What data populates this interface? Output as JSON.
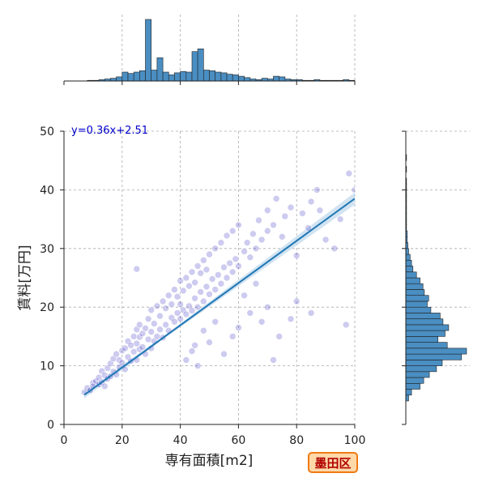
{
  "badge": "墨田区",
  "colors": {
    "scatter": "#1a14b8",
    "regression": "#1f77b4",
    "band": "#c6dcef",
    "hist_fill": "#4a8ec2",
    "hist_edge": "#222222",
    "grid": "#aaaaaa",
    "equation": "#0000cc"
  },
  "chart_data": [
    {
      "type": "scatter",
      "title": "",
      "xlabel": "専有面積[m2]",
      "ylabel": "賃料[万円]",
      "xlim": [
        0,
        100
      ],
      "ylim": [
        0,
        50
      ],
      "xticks": [
        0,
        20,
        40,
        60,
        80,
        100
      ],
      "yticks": [
        0,
        10,
        20,
        30,
        40,
        50
      ],
      "grid": true,
      "annotation": "y=0.36x+2.51",
      "regression": {
        "slope": 0.36,
        "intercept": 2.51,
        "x_range": [
          7,
          100
        ]
      },
      "points": [
        [
          7,
          5.5
        ],
        [
          8,
          6.2
        ],
        [
          9,
          5.8
        ],
        [
          10,
          7.1
        ],
        [
          10,
          6.5
        ],
        [
          11,
          7.4
        ],
        [
          12,
          6.8
        ],
        [
          12,
          8.0
        ],
        [
          13,
          7.2
        ],
        [
          13,
          9.1
        ],
        [
          14,
          6.5
        ],
        [
          14,
          8.4
        ],
        [
          15,
          7.8
        ],
        [
          15,
          9.6
        ],
        [
          16,
          8.2
        ],
        [
          16,
          10.4
        ],
        [
          17,
          9.0
        ],
        [
          17,
          11.2
        ],
        [
          18,
          8.5
        ],
        [
          18,
          12.0
        ],
        [
          19,
          9.8
        ],
        [
          19,
          11.0
        ],
        [
          20,
          10.5
        ],
        [
          20,
          12.6
        ],
        [
          21,
          9.4
        ],
        [
          21,
          13.0
        ],
        [
          22,
          11.5
        ],
        [
          22,
          14.2
        ],
        [
          23,
          10.8
        ],
        [
          23,
          13.5
        ],
        [
          24,
          12.4
        ],
        [
          24,
          15.0
        ],
        [
          25,
          11.0
        ],
        [
          25,
          13.8
        ],
        [
          25,
          16.2
        ],
        [
          25,
          26.5
        ],
        [
          26,
          12.8
        ],
        [
          26,
          14.9
        ],
        [
          26,
          17.0
        ],
        [
          27,
          13.2
        ],
        [
          27,
          15.5
        ],
        [
          28,
          12.0
        ],
        [
          28,
          16.4
        ],
        [
          29,
          14.5
        ],
        [
          29,
          18.0
        ],
        [
          30,
          13.0
        ],
        [
          30,
          15.8
        ],
        [
          30,
          19.5
        ],
        [
          31,
          14.2
        ],
        [
          31,
          17.2
        ],
        [
          32,
          15.0
        ],
        [
          32,
          20.2
        ],
        [
          33,
          16.2
        ],
        [
          33,
          18.5
        ],
        [
          34,
          14.8
        ],
        [
          34,
          21.0
        ],
        [
          35,
          17.0
        ],
        [
          35,
          19.8
        ],
        [
          36,
          16.0
        ],
        [
          36,
          22.0
        ],
        [
          37,
          18.2
        ],
        [
          37,
          20.5
        ],
        [
          38,
          17.5
        ],
        [
          38,
          23.0
        ],
        [
          39,
          19.0
        ],
        [
          39,
          21.8
        ],
        [
          40,
          18.0
        ],
        [
          40,
          24.5
        ],
        [
          40,
          20.5
        ],
        [
          41,
          19.5
        ],
        [
          41,
          22.8
        ],
        [
          42,
          18.8
        ],
        [
          42,
          25.0
        ],
        [
          43,
          20.2
        ],
        [
          43,
          23.6
        ],
        [
          44,
          19.4
        ],
        [
          44,
          26.0
        ],
        [
          45,
          21.5
        ],
        [
          45,
          24.2
        ],
        [
          46,
          20.0
        ],
        [
          46,
          27.0
        ],
        [
          47,
          22.6
        ],
        [
          47,
          25.8
        ],
        [
          48,
          21.0
        ],
        [
          48,
          28.0
        ],
        [
          49,
          23.5
        ],
        [
          49,
          26.4
        ],
        [
          50,
          22.2
        ],
        [
          50,
          29.0
        ],
        [
          51,
          24.8
        ],
        [
          52,
          23.0
        ],
        [
          52,
          30.0
        ],
        [
          53,
          25.5
        ],
        [
          54,
          24.0
        ],
        [
          54,
          31.0
        ],
        [
          55,
          26.8
        ],
        [
          56,
          25.0
        ],
        [
          56,
          32.2
        ],
        [
          57,
          27.5
        ],
        [
          58,
          26.0
        ],
        [
          58,
          33.0
        ],
        [
          59,
          28.2
        ],
        [
          60,
          27.0
        ],
        [
          60,
          34.0
        ],
        [
          62,
          29.5
        ],
        [
          63,
          31.0
        ],
        [
          64,
          28.5
        ],
        [
          65,
          32.5
        ],
        [
          66,
          30.0
        ],
        [
          67,
          34.8
        ],
        [
          68,
          31.5
        ],
        [
          70,
          33.0
        ],
        [
          70,
          36.5
        ],
        [
          72,
          34.0
        ],
        [
          73,
          38.5
        ],
        [
          75,
          32.0
        ],
        [
          76,
          35.5
        ],
        [
          78,
          37.0
        ],
        [
          80,
          28.8
        ],
        [
          82,
          36.0
        ],
        [
          84,
          33.5
        ],
        [
          85,
          38.0
        ],
        [
          87,
          40.0
        ],
        [
          88,
          36.5
        ],
        [
          90,
          31.5
        ],
        [
          93,
          30.0
        ],
        [
          95,
          35.0
        ],
        [
          97,
          17.0
        ],
        [
          98,
          42.8
        ],
        [
          100,
          40.0
        ],
        [
          62,
          22.0
        ],
        [
          64,
          19.0
        ],
        [
          66,
          24.0
        ],
        [
          68,
          17.5
        ],
        [
          70,
          20.0
        ],
        [
          72,
          11.0
        ],
        [
          74,
          15.0
        ],
        [
          78,
          18.0
        ],
        [
          80,
          21.0
        ],
        [
          85,
          19.0
        ],
        [
          55,
          12.0
        ],
        [
          58,
          15.0
        ],
        [
          50,
          14.0
        ],
        [
          48,
          16.0
        ],
        [
          45,
          13.5
        ],
        [
          42,
          11.0
        ],
        [
          52,
          17.5
        ],
        [
          60,
          16.5
        ],
        [
          46,
          10.0
        ],
        [
          44,
          12.5
        ]
      ]
    },
    {
      "type": "bar",
      "title": "",
      "xlabel": "",
      "ylabel": "",
      "orientation": "vertical",
      "xlim": [
        0,
        100
      ],
      "bin_width": 2,
      "bin_start": 8,
      "values": [
        1,
        1,
        2,
        3,
        4,
        6,
        13,
        11,
        13,
        15,
        90,
        16,
        34,
        13,
        9,
        12,
        14,
        13,
        43,
        47,
        16,
        15,
        13,
        12,
        10,
        9,
        7,
        5,
        3,
        2,
        4,
        3,
        7,
        6,
        3,
        2,
        2,
        1,
        1,
        2,
        1,
        1,
        1,
        1,
        2,
        1
      ]
    },
    {
      "type": "bar",
      "title": "",
      "xlabel": "",
      "ylabel": "",
      "orientation": "horizontal",
      "ylim": [
        0,
        50
      ],
      "bin_width": 1,
      "bin_start": 4,
      "values": [
        4,
        8,
        20,
        25,
        33,
        43,
        51,
        78,
        85,
        58,
        45,
        55,
        60,
        52,
        48,
        35,
        30,
        32,
        26,
        24,
        20,
        15,
        10,
        8,
        6,
        4,
        3,
        2,
        2,
        1,
        1,
        1,
        1,
        1,
        1,
        1,
        1,
        1,
        0,
        1,
        0,
        1
      ]
    }
  ]
}
